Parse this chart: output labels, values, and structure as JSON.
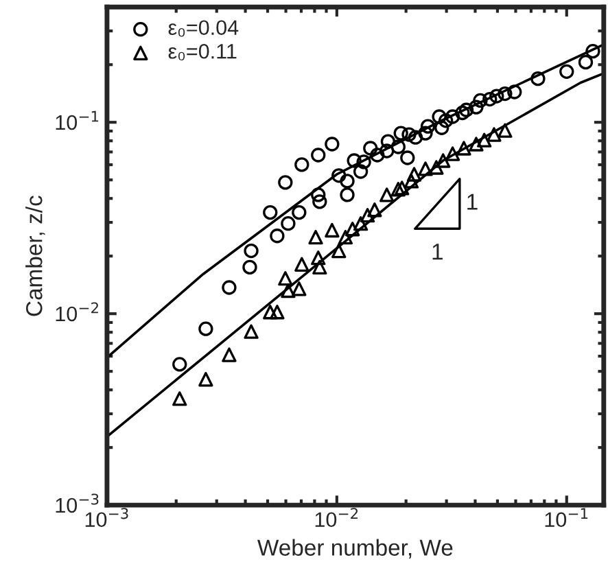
{
  "chart_data": {
    "type": "scatter",
    "xlabel": "Weber number, We",
    "ylabel": "Camber, z/c",
    "log": "xy",
    "grid": false,
    "legend": "top left",
    "xlim": [
      0.001,
      0.145
    ],
    "ylim": [
      0.001,
      0.4
    ],
    "xticks": [
      {
        "value": 0.001,
        "label": "10$^{−3}$"
      },
      {
        "value": 0.01,
        "label": "10$^{−2}$"
      },
      {
        "value": 0.1,
        "label": "10$^{−1}$"
      }
    ],
    "yticks": [
      {
        "value": 0.001,
        "label": "10$^{−3}$"
      },
      {
        "value": 0.01,
        "label": "10$^{−2}$"
      },
      {
        "value": 0.1,
        "label": "10$^{−1}$"
      }
    ],
    "annotations": [
      "1",
      "1"
    ],
    "series": [
      {
        "name": "ε₀=0.04",
        "marker": "circle",
        "color": "#000000",
        "x": [
          0.00207,
          0.00269,
          0.0034,
          0.00418,
          0.00424,
          0.00513,
          0.0055,
          0.00614,
          0.00685,
          0.00597,
          0.00704,
          0.0083,
          0.00953,
          0.0083,
          0.00842,
          0.0111,
          0.0111,
          0.0102,
          0.0119,
          0.0127,
          0.0131,
          0.014,
          0.015,
          0.0165,
          0.0167,
          0.0185,
          0.019,
          0.0203,
          0.0206,
          0.022,
          0.0243,
          0.0249,
          0.0279,
          0.0286,
          0.0298,
          0.0319,
          0.0352,
          0.0366,
          0.0404,
          0.0421,
          0.0463,
          0.0496,
          0.0539,
          0.0593,
          0.075,
          0.1,
          0.121,
          0.13
        ],
        "values": [
          0.00544,
          0.00834,
          0.0137,
          0.0175,
          0.0213,
          0.0338,
          0.0255,
          0.0296,
          0.0338,
          0.0485,
          0.0601,
          0.0674,
          0.0769,
          0.0418,
          0.0385,
          0.0418,
          0.0493,
          0.0527,
          0.0631,
          0.0553,
          0.0621,
          0.0732,
          0.0674,
          0.0708,
          0.0794,
          0.0744,
          0.0877,
          0.0652,
          0.0863,
          0.0834,
          0.0877,
          0.0952,
          0.107,
          0.0936,
          0.102,
          0.107,
          0.112,
          0.116,
          0.12,
          0.13,
          0.132,
          0.137,
          0.141,
          0.144,
          0.169,
          0.184,
          0.206,
          0.235
        ]
      },
      {
        "name": "ε₀=0.11",
        "marker": "triangle",
        "color": "#000000",
        "x": [
          0.00207,
          0.00269,
          0.0034,
          0.00424,
          0.00513,
          0.0055,
          0.00597,
          0.00614,
          0.00685,
          0.00704,
          0.0083,
          0.00842,
          0.0102,
          0.00953,
          0.00809,
          0.0109,
          0.0117,
          0.0127,
          0.0136,
          0.0146,
          0.0165,
          0.0185,
          0.0192,
          0.0211,
          0.0217,
          0.0243,
          0.0271,
          0.029,
          0.0319,
          0.0357,
          0.0404,
          0.0438,
          0.0483,
          0.0539
        ],
        "values": [
          0.0036,
          0.00454,
          0.0061,
          0.00807,
          0.0102,
          0.0102,
          0.0153,
          0.0132,
          0.0135,
          0.0181,
          0.0196,
          0.0175,
          0.0213,
          0.0273,
          0.0251,
          0.0251,
          0.0277,
          0.0296,
          0.0327,
          0.0349,
          0.0418,
          0.0447,
          0.0454,
          0.0493,
          0.0535,
          0.0572,
          0.0581,
          0.0631,
          0.0685,
          0.0732,
          0.0769,
          0.0807,
          0.0863,
          0.0906
        ]
      },
      {
        "type": "line",
        "color": "#000000",
        "line_style": "solid",
        "x": [
          0.001,
          0.00262,
          0.01,
          0.029,
          0.145
        ],
        "values": [
          0.0059,
          0.0161,
          0.0535,
          0.103,
          0.255
        ]
      },
      {
        "type": "line",
        "color": "#000000",
        "line_style": "solid",
        "x": [
          0.001,
          0.0102,
          0.029,
          0.115,
          0.145
        ],
        "values": [
          0.00228,
          0.0224,
          0.0631,
          0.161,
          0.18
        ]
      }
    ]
  }
}
